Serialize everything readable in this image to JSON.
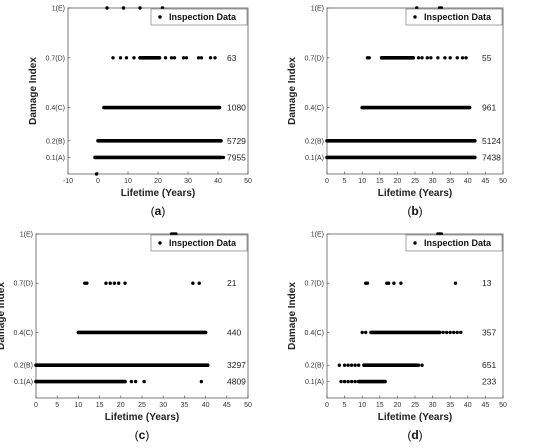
{
  "chart_data": [
    {
      "type": "scatter",
      "panel_label": "a",
      "xlabel": "Lifetime (Years)",
      "ylabel": "Damage Index",
      "xlim": [
        -10,
        50
      ],
      "x_ticks": [
        "-10",
        "0",
        "10",
        "20",
        "30",
        "40",
        "50"
      ],
      "y_ticks": [
        {
          "value": 0.1,
          "label": "0.1(A)"
        },
        {
          "value": 0.2,
          "label": "0.2(B)"
        },
        {
          "value": 0.4,
          "label": "0.4(C)"
        },
        {
          "value": 0.7,
          "label": "0.7(D)"
        },
        {
          "value": 1.0,
          "label": "1(E)"
        }
      ],
      "legend": {
        "label": "Inspection Data",
        "position": "top-right"
      },
      "rows": [
        {
          "state": "A",
          "y": 0.1,
          "count": "7955",
          "ranges": [
            [
              -1,
              41
            ]
          ],
          "dots": [
            41.8
          ]
        },
        {
          "state": "B",
          "y": 0.2,
          "count": "5729",
          "ranges": [
            [
              0,
              41
            ]
          ],
          "dots": []
        },
        {
          "state": "C",
          "y": 0.4,
          "count": "1080",
          "ranges": [
            [
              2,
              40.5
            ]
          ],
          "dots": []
        },
        {
          "state": "D",
          "y": 0.7,
          "count": "63",
          "ranges": [
            [
              14,
              20.5
            ]
          ],
          "dots": [
            5,
            7.5,
            9.5,
            12,
            22.5,
            24.5,
            25.5,
            28.5,
            29.5,
            33.5,
            34.5,
            37.5,
            39
          ]
        },
        {
          "state": "E",
          "y": 1.0,
          "count": "",
          "ranges": [],
          "dots": [
            3,
            8.5,
            14,
            21.5
          ]
        }
      ],
      "extra_points": [
        {
          "x": -0.5,
          "y": 0.0
        }
      ]
    },
    {
      "type": "scatter",
      "panel_label": "b",
      "xlabel": "Lifetime (Years)",
      "ylabel": "Damage Index",
      "xlim": [
        0,
        50
      ],
      "x_ticks": [
        "0",
        "5",
        "10",
        "15",
        "20",
        "25",
        "30",
        "35",
        "40",
        "45",
        "50"
      ],
      "y_ticks": [
        {
          "value": 0.1,
          "label": "0.1(A)"
        },
        {
          "value": 0.2,
          "label": "0.2(B)"
        },
        {
          "value": 0.4,
          "label": "0.4(C)"
        },
        {
          "value": 0.7,
          "label": "0.7(D)"
        },
        {
          "value": 1.0,
          "label": "1(E)"
        }
      ],
      "legend": {
        "label": "Inspection Data",
        "position": "top-right"
      },
      "rows": [
        {
          "state": "A",
          "y": 0.1,
          "count": "7438",
          "ranges": [
            [
              0,
              42
            ]
          ],
          "dots": []
        },
        {
          "state": "B",
          "y": 0.2,
          "count": "5124",
          "ranges": [
            [
              0,
              42
            ]
          ],
          "dots": []
        },
        {
          "state": "C",
          "y": 0.4,
          "count": "961",
          "ranges": [
            [
              10,
              40.5
            ]
          ],
          "dots": []
        },
        {
          "state": "D",
          "y": 0.7,
          "count": "55",
          "ranges": [
            [
              15.5,
              24.5
            ]
          ],
          "dots": [
            11.5,
            12,
            26,
            27,
            28.5,
            29.5,
            31.5,
            33.5,
            35,
            37,
            38.5,
            39.5
          ]
        },
        {
          "state": "E",
          "y": 1.0,
          "count": "",
          "ranges": [],
          "dots": [
            25.5,
            32,
            32.5
          ]
        }
      ],
      "extra_points": []
    },
    {
      "type": "scatter",
      "panel_label": "c",
      "xlabel": "Lifetime (Years)",
      "ylabel": "Damage Index",
      "xlim": [
        0,
        50
      ],
      "x_ticks": [
        "0",
        "5",
        "10",
        "15",
        "20",
        "25",
        "30",
        "35",
        "40",
        "45",
        "50"
      ],
      "y_ticks": [
        {
          "value": 0.1,
          "label": "0.1(A)"
        },
        {
          "value": 0.2,
          "label": "0.2(B)"
        },
        {
          "value": 0.4,
          "label": "0.4(C)"
        },
        {
          "value": 0.7,
          "label": "0.7(D)"
        },
        {
          "value": 1.0,
          "label": "1(E)"
        }
      ],
      "legend": {
        "label": "Inspection Data",
        "position": "top-right"
      },
      "rows": [
        {
          "state": "A",
          "y": 0.1,
          "count": "4809",
          "ranges": [
            [
              0,
              21
            ]
          ],
          "dots": [
            22.5,
            23.5,
            25.5,
            39
          ]
        },
        {
          "state": "B",
          "y": 0.2,
          "count": "3297",
          "ranges": [
            [
              0,
              40.5
            ]
          ],
          "dots": []
        },
        {
          "state": "C",
          "y": 0.4,
          "count": "440",
          "ranges": [
            [
              10,
              40
            ]
          ],
          "dots": []
        },
        {
          "state": "D",
          "y": 0.7,
          "count": "21",
          "ranges": [],
          "dots": [
            11.5,
            12,
            16.5,
            17.5,
            18.5,
            19.5,
            21,
            37,
            38.5
          ]
        },
        {
          "state": "E",
          "y": 1.0,
          "count": "",
          "ranges": [],
          "dots": [
            32,
            32.5,
            33
          ]
        }
      ],
      "extra_points": []
    },
    {
      "type": "scatter",
      "panel_label": "d",
      "xlabel": "Lifetime (Years)",
      "ylabel": "Damage Index",
      "xlim": [
        0,
        50
      ],
      "x_ticks": [
        "0",
        "5",
        "10",
        "15",
        "20",
        "25",
        "30",
        "35",
        "40",
        "45",
        "50"
      ],
      "y_ticks": [
        {
          "value": 0.1,
          "label": "0.1(A)"
        },
        {
          "value": 0.2,
          "label": "0.2(B)"
        },
        {
          "value": 0.4,
          "label": "0.4(C)"
        },
        {
          "value": 0.7,
          "label": "0.7(D)"
        },
        {
          "value": 1.0,
          "label": "1(E)"
        }
      ],
      "legend": {
        "label": "Inspection Data",
        "position": "top-right"
      },
      "rows": [
        {
          "state": "A",
          "y": 0.1,
          "count": "233",
          "ranges": [
            [
              9,
              16.5
            ]
          ],
          "dots": [
            4,
            5,
            6,
            7,
            8
          ]
        },
        {
          "state": "B",
          "y": 0.2,
          "count": "651",
          "ranges": [
            [
              10.5,
              25.5
            ]
          ],
          "dots": [
            3.5,
            5,
            6,
            7,
            8,
            9,
            26,
            27
          ]
        },
        {
          "state": "C",
          "y": 0.4,
          "count": "357",
          "ranges": [
            [
              12.5,
              32
            ]
          ],
          "dots": [
            10,
            11,
            33,
            34,
            35,
            36,
            37,
            38
          ]
        },
        {
          "state": "D",
          "y": 0.7,
          "count": "13",
          "ranges": [],
          "dots": [
            11,
            11.5,
            17,
            17.5,
            19,
            21,
            36.5
          ]
        },
        {
          "state": "E",
          "y": 1.0,
          "count": "",
          "ranges": [],
          "dots": [
            31.5,
            32,
            32.5
          ]
        }
      ],
      "extra_points": []
    }
  ]
}
